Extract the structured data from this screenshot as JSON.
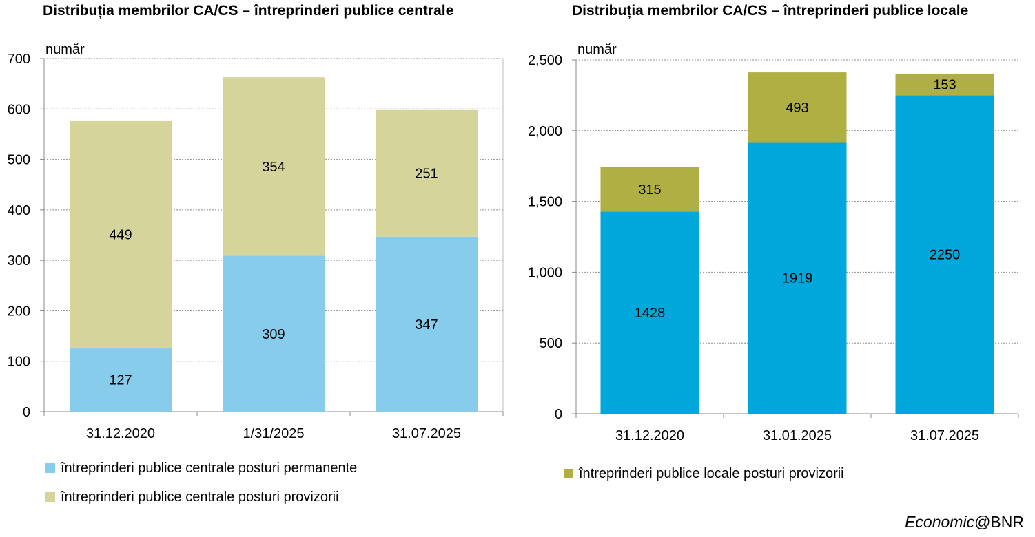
{
  "chart_data": [
    {
      "type": "bar",
      "stacked": true,
      "title": "Distribuția membrilor CA/CS – întreprinderi publice centrale",
      "ylabel": "număr",
      "categories": [
        "31.12.2020",
        "1/31/2025",
        "31.07.2025"
      ],
      "ylim": [
        0,
        700
      ],
      "yticks": [
        0,
        100,
        200,
        300,
        400,
        500,
        600,
        700
      ],
      "ytick_labels": [
        "0",
        "100",
        "200",
        "300",
        "400",
        "500",
        "600",
        "700"
      ],
      "grid": true,
      "legend_position": "bottom",
      "series": [
        {
          "name": "întreprinderi publice centrale posturi permanente",
          "values": [
            127,
            309,
            347
          ],
          "color": "#87CDEB"
        },
        {
          "name": "întreprinderi publice centrale posturi provizorii",
          "values": [
            449,
            354,
            251
          ],
          "color": "#D5D59B"
        }
      ]
    },
    {
      "type": "bar",
      "stacked": true,
      "title": "Distribuția membrilor CA/CS – întreprinderi publice locale",
      "ylabel": "număr",
      "categories": [
        "31.12.2020",
        "31.01.2025",
        "31.07.2025"
      ],
      "ylim": [
        0,
        2500
      ],
      "yticks": [
        0,
        500,
        1000,
        1500,
        2000,
        2500
      ],
      "ytick_labels": [
        "0",
        "500",
        "1,000",
        "1,500",
        "2,000",
        "2,500"
      ],
      "grid": true,
      "legend_position": "bottom",
      "series": [
        {
          "name": "",
          "values": [
            1428,
            1919,
            2250
          ],
          "color": "#00A7DB"
        },
        {
          "name": "întreprinderi publice locale posturi provizorii",
          "values": [
            315,
            493,
            153
          ],
          "color": "#AFAF44"
        }
      ]
    }
  ],
  "footer": {
    "italic": "Economic",
    "rest": "@BNR"
  }
}
